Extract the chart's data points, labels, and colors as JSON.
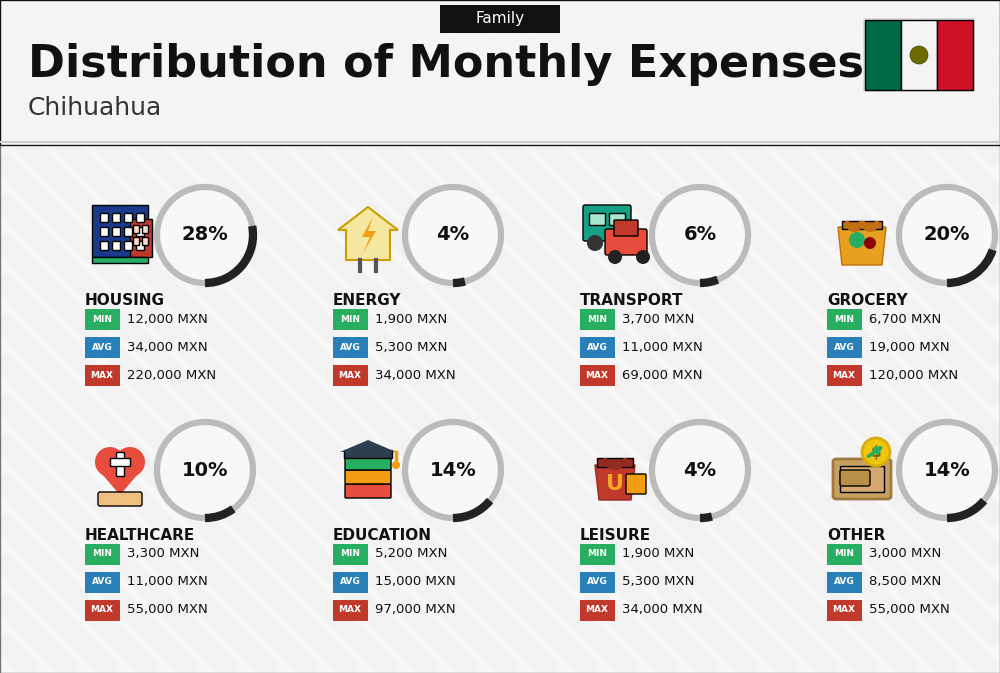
{
  "title": "Distribution of Monthly Expenses",
  "subtitle": "Chihuahua",
  "category_label": "Family",
  "bg_color": "#efefef",
  "categories": [
    {
      "name": "HOUSING",
      "pct": 28,
      "min_val": "12,000 MXN",
      "avg_val": "34,000 MXN",
      "max_val": "220,000 MXN",
      "row": 0,
      "col": 0,
      "icon_color": "#2255aa"
    },
    {
      "name": "ENERGY",
      "pct": 4,
      "min_val": "1,900 MXN",
      "avg_val": "5,300 MXN",
      "max_val": "34,000 MXN",
      "row": 0,
      "col": 1,
      "icon_color": "#f5a623"
    },
    {
      "name": "TRANSPORT",
      "pct": 6,
      "min_val": "3,700 MXN",
      "avg_val": "11,000 MXN",
      "max_val": "69,000 MXN",
      "row": 0,
      "col": 2,
      "icon_color": "#00aacc"
    },
    {
      "name": "GROCERY",
      "pct": 20,
      "min_val": "6,700 MXN",
      "avg_val": "19,000 MXN",
      "max_val": "120,000 MXN",
      "row": 0,
      "col": 3,
      "icon_color": "#e8a020"
    },
    {
      "name": "HEALTHCARE",
      "pct": 10,
      "min_val": "3,300 MXN",
      "avg_val": "11,000 MXN",
      "max_val": "55,000 MXN",
      "row": 1,
      "col": 0,
      "icon_color": "#e74c3c"
    },
    {
      "name": "EDUCATION",
      "pct": 14,
      "min_val": "5,200 MXN",
      "avg_val": "15,000 MXN",
      "max_val": "97,000 MXN",
      "row": 1,
      "col": 1,
      "icon_color": "#e67e22"
    },
    {
      "name": "LEISURE",
      "pct": 4,
      "min_val": "1,900 MXN",
      "avg_val": "5,300 MXN",
      "max_val": "34,000 MXN",
      "row": 1,
      "col": 2,
      "icon_color": "#c0392b"
    },
    {
      "name": "OTHER",
      "pct": 14,
      "min_val": "3,000 MXN",
      "avg_val": "8,500 MXN",
      "max_val": "55,000 MXN",
      "row": 1,
      "col": 3,
      "icon_color": "#b8860b"
    }
  ],
  "color_min": "#27ae60",
  "color_avg": "#2980b9",
  "color_max": "#c0392b",
  "color_title_bg": "#111111",
  "color_title_fg": "#ffffff",
  "color_main_title": "#111111",
  "color_subtitle": "#333333",
  "circle_edge_color": "#bbbbbb",
  "circle_fill": "#f8f8f8",
  "arc_color": "#222222",
  "pct_color": "#111111",
  "cat_name_color": "#111111",
  "value_text_color": "#111111",
  "flag_green": "#006847",
  "flag_white": "#f4f4f4",
  "flag_red": "#ce1126",
  "stripe_color": "#e2e2e2",
  "header_bg": "#e8e8e8",
  "content_bg": "#ebebeb"
}
